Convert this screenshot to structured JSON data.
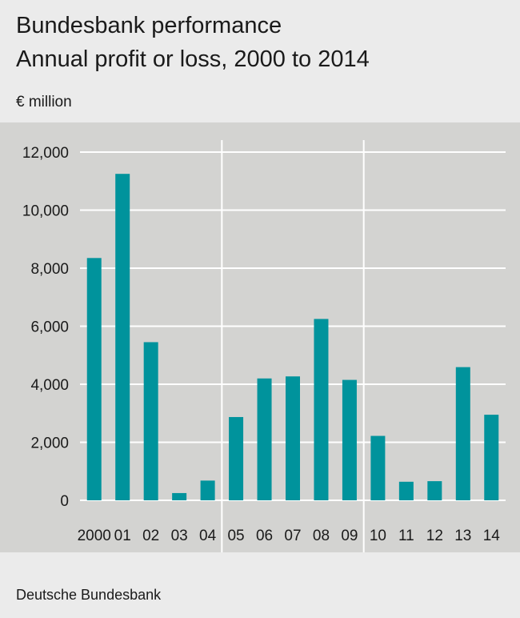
{
  "header": {
    "title": "Bundesbank performance",
    "subtitle": "Annual profit or loss, 2000 to 2014",
    "unit": "€ million"
  },
  "chart_data": {
    "type": "bar",
    "categories": [
      "2000",
      "01",
      "02",
      "03",
      "04",
      "05",
      "06",
      "07",
      "08",
      "09",
      "10",
      "11",
      "12",
      "13",
      "14"
    ],
    "values": [
      8350,
      11250,
      5450,
      250,
      680,
      2870,
      4200,
      4270,
      6250,
      4150,
      2220,
      640,
      660,
      4590,
      2950
    ],
    "y_ticks": [
      {
        "value": 0,
        "label": "0"
      },
      {
        "value": 2000,
        "label": "2,000"
      },
      {
        "value": 4000,
        "label": "4,000"
      },
      {
        "value": 6000,
        "label": "6,000"
      },
      {
        "value": 8000,
        "label": "8,000"
      },
      {
        "value": 10000,
        "label": "10,000"
      },
      {
        "value": 12000,
        "label": "12,000"
      }
    ],
    "ylim": [
      0,
      12000
    ],
    "grid": true,
    "vertical_separators_after": [
      "04",
      "09"
    ],
    "bar_color": "#00939c",
    "gridline_color": "#ffffff",
    "panel_color": "#d3d3d1"
  },
  "footer": {
    "source": "Deutsche Bundesbank"
  }
}
